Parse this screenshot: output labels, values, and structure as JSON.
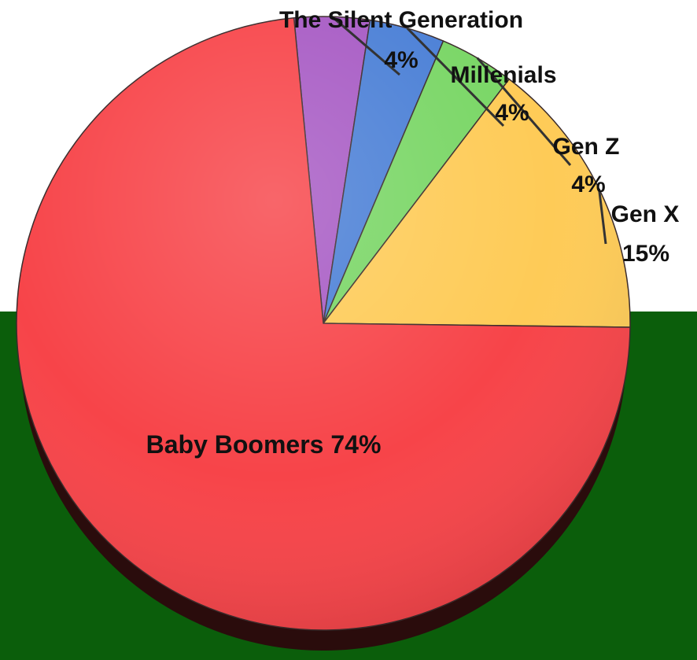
{
  "colors": {
    "background_top": "#ffffff",
    "background_bottom": "#0b5e0b",
    "pie_side": "#2a0c0c"
  },
  "chart_data": {
    "type": "pie",
    "title": "",
    "slices": [
      {
        "name": "The Silent Generation",
        "value": 4,
        "label": "4%",
        "color": "#a75ac4"
      },
      {
        "name": "Millenials",
        "value": 4,
        "label": "4%",
        "color": "#4a7fd6"
      },
      {
        "name": "Gen Z",
        "value": 4,
        "label": "4%",
        "color": "#79d665"
      },
      {
        "name": "Gen X",
        "value": 15,
        "label": "15%",
        "color": "#fecb57"
      },
      {
        "name": "Baby Boomers",
        "value": 74,
        "label": "74%",
        "color": "#f74449"
      }
    ]
  }
}
